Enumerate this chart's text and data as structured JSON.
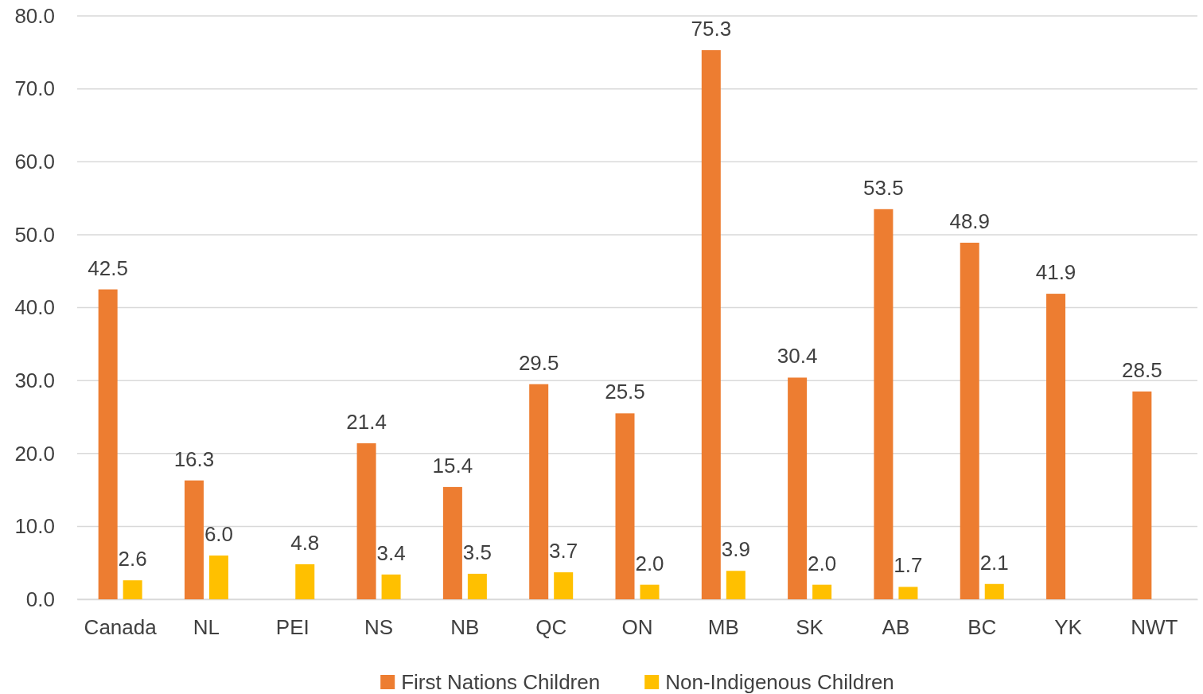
{
  "chart_data": {
    "type": "bar",
    "categories": [
      "Canada",
      "NL",
      "PEI",
      "NS",
      "NB",
      "QC",
      "ON",
      "MB",
      "SK",
      "AB",
      "BC",
      "YK",
      "NWT"
    ],
    "series": [
      {
        "name": "First Nations Children",
        "color": "#ed7d31",
        "values": [
          42.5,
          16.3,
          null,
          21.4,
          15.4,
          29.5,
          25.5,
          75.3,
          30.4,
          53.5,
          48.9,
          41.9,
          28.5
        ],
        "value_labels": [
          "42.5",
          "16.3",
          null,
          "21.4",
          "15.4",
          "29.5",
          "25.5",
          "75.3",
          "30.4",
          "53.5",
          "48.9",
          "41.9",
          "28.5"
        ]
      },
      {
        "name": "Non-Indigenous Children",
        "color": "#ffc000",
        "values": [
          2.6,
          6.0,
          4.8,
          3.4,
          3.5,
          3.7,
          2.0,
          3.9,
          2.0,
          1.7,
          2.1,
          null,
          null
        ],
        "value_labels": [
          "2.6",
          "6.0",
          "4.8",
          "3.4",
          "3.5",
          "3.7",
          "2.0",
          "3.9",
          "2.0",
          "1.7",
          "2.1",
          null,
          null
        ]
      }
    ],
    "ylim": [
      0,
      80
    ],
    "yticks": [
      {
        "value": 0,
        "label": "0.0"
      },
      {
        "value": 10,
        "label": "10.0"
      },
      {
        "value": 20,
        "label": "20.0"
      },
      {
        "value": 30,
        "label": "30.0"
      },
      {
        "value": 40,
        "label": "40.0"
      },
      {
        "value": 50,
        "label": "50.0"
      },
      {
        "value": 60,
        "label": "60.0"
      },
      {
        "value": 70,
        "label": "70.0"
      },
      {
        "value": 80,
        "label": "80.0"
      }
    ],
    "grid": "y",
    "legend": "bottom"
  }
}
